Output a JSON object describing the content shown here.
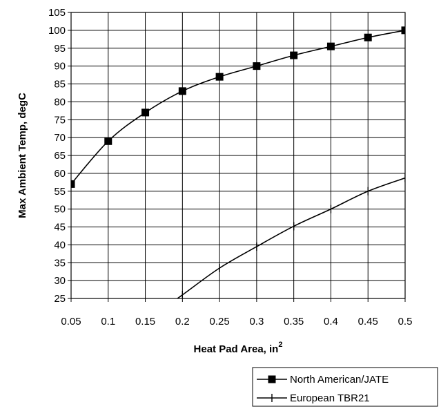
{
  "chart_data": {
    "type": "line",
    "title": "",
    "xlabel": "Heat Pad Area, in",
    "xlabel_superscript": "2",
    "ylabel": "Max Ambient Temp, degC",
    "xlim": [
      0.05,
      0.5
    ],
    "ylim": [
      25,
      105
    ],
    "xticks": [
      "0.05",
      "0.1",
      "0.15",
      "0.2",
      "0.25",
      "0.3",
      "0.35",
      "0.4",
      "0.45",
      "0.5"
    ],
    "yticks": [
      "25",
      "30",
      "35",
      "40",
      "45",
      "50",
      "55",
      "60",
      "65",
      "70",
      "75",
      "80",
      "85",
      "90",
      "95",
      "100",
      "105"
    ],
    "grid": true,
    "legend_position": "bottom-right",
    "series": [
      {
        "name": "North American/JATE",
        "marker": "square",
        "color": "#000000",
        "x": [
          0.05,
          0.1,
          0.15,
          0.2,
          0.25,
          0.3,
          0.35,
          0.4,
          0.45,
          0.5
        ],
        "y": [
          57,
          69,
          77,
          83,
          87,
          90,
          93,
          95.5,
          98,
          100
        ]
      },
      {
        "name": "European TBR21",
        "marker": "dash",
        "color": "#000000",
        "x": [
          0.2,
          0.25,
          0.3,
          0.35,
          0.4,
          0.45,
          0.5
        ],
        "y": [
          26,
          33.5,
          39.5,
          45.2,
          50,
          55,
          58.7
        ]
      }
    ]
  }
}
